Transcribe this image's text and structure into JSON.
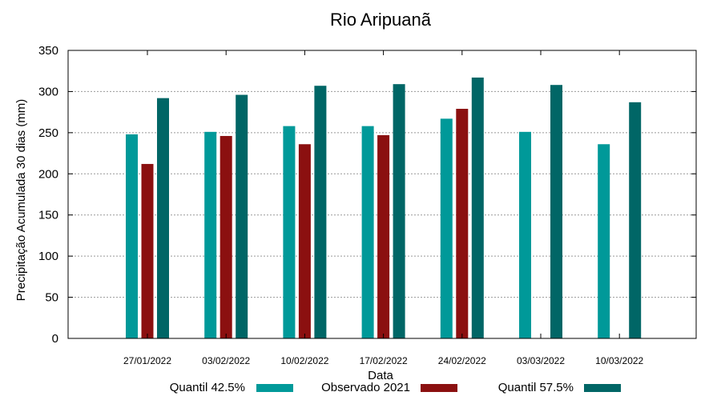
{
  "chart_data": {
    "type": "bar",
    "title": "Rio Aripuanã",
    "xlabel": "Data",
    "ylabel": "Precipitação Acumulada 30 dias (mm)",
    "ylim": [
      0,
      350
    ],
    "yticks": [
      0,
      50,
      100,
      150,
      200,
      250,
      300,
      350
    ],
    "grid": true,
    "legend_position": "bottom",
    "categories": [
      "27/01/2022",
      "03/02/2022",
      "10/02/2022",
      "17/02/2022",
      "24/02/2022",
      "03/03/2022",
      "10/03/2022"
    ],
    "series": [
      {
        "name": "Quantil 42.5%",
        "color": "#009999",
        "values": [
          248,
          251,
          258,
          258,
          267,
          251,
          236
        ]
      },
      {
        "name": "Observado 2021",
        "color": "#8b1010",
        "values": [
          212,
          246,
          236,
          247,
          279,
          null,
          null
        ]
      },
      {
        "name": "Quantil 57.5%",
        "color": "#006666",
        "values": [
          292,
          296,
          307,
          309,
          317,
          308,
          287
        ]
      }
    ]
  }
}
